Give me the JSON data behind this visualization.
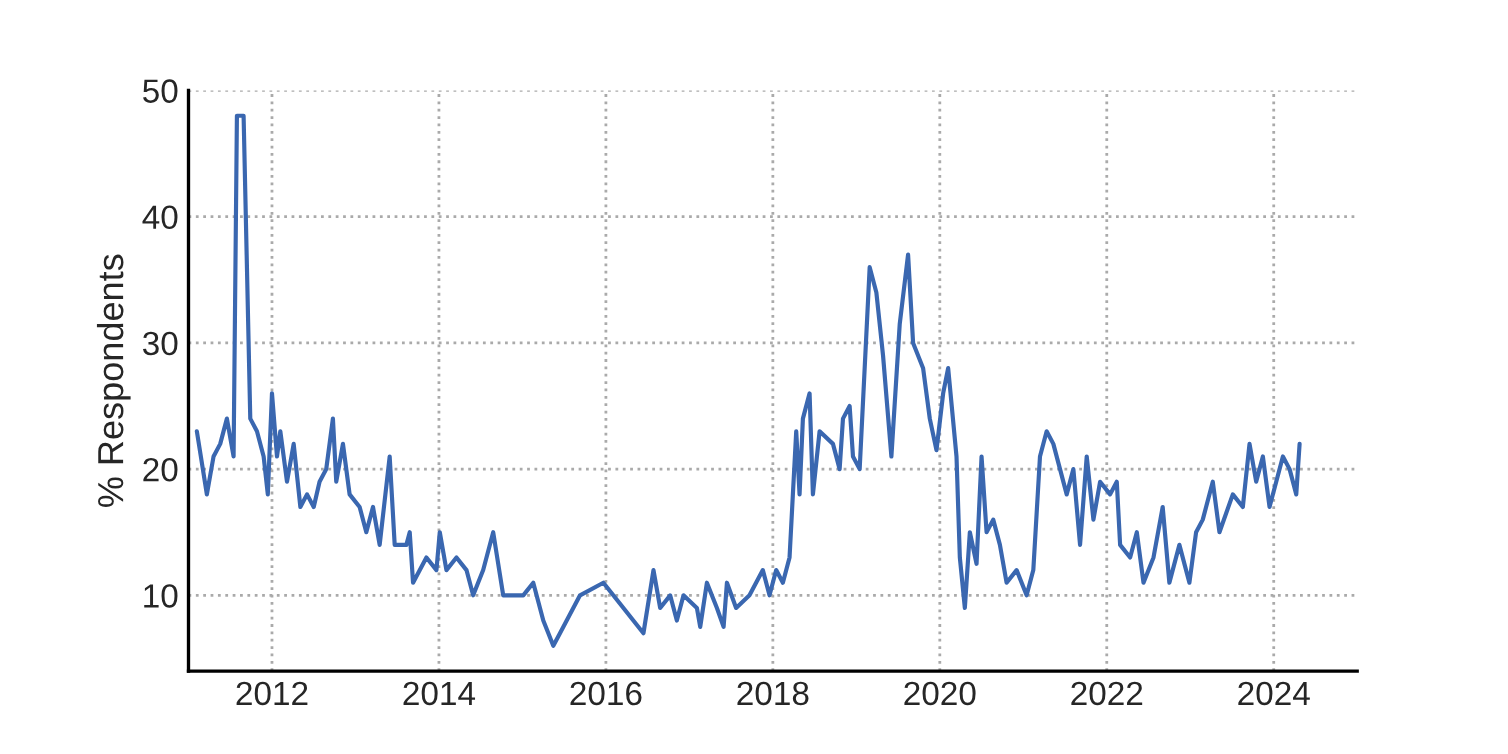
{
  "chart_data": {
    "type": "line",
    "ylabel": "% Respondents",
    "xlim": [
      2011,
      2025
    ],
    "ylim": [
      4,
      50
    ],
    "xticks": [
      2012,
      2014,
      2016,
      2018,
      2020,
      2022,
      2024
    ],
    "yticks": [
      10,
      20,
      30,
      40,
      50
    ],
    "grid": true,
    "line_style": "solid",
    "marker": "none",
    "series": [
      {
        "color": "#3a67b0",
        "x": [
          2011.1,
          2011.22,
          2011.3,
          2011.38,
          2011.46,
          2011.54,
          2011.58,
          2011.66,
          2011.74,
          2011.82,
          2011.9,
          2011.95,
          2012.0,
          2012.06,
          2012.1,
          2012.18,
          2012.26,
          2012.34,
          2012.42,
          2012.5,
          2012.57,
          2012.65,
          2012.73,
          2012.77,
          2012.85,
          2012.93,
          2013.05,
          2013.13,
          2013.21,
          2013.29,
          2013.41,
          2013.47,
          2013.61,
          2013.65,
          2013.69,
          2013.85,
          2013.97,
          2014.01,
          2014.09,
          2014.21,
          2014.33,
          2014.41,
          2014.53,
          2014.65,
          2014.77,
          2015.01,
          2015.13,
          2015.25,
          2015.37,
          2015.45,
          2015.69,
          2015.97,
          2016.45,
          2016.57,
          2016.65,
          2016.77,
          2016.85,
          2016.93,
          2017.09,
          2017.13,
          2017.21,
          2017.33,
          2017.41,
          2017.45,
          2017.56,
          2017.72,
          2017.88,
          2017.96,
          2018.04,
          2018.12,
          2018.2,
          2018.28,
          2018.32,
          2018.36,
          2018.44,
          2018.48,
          2018.56,
          2018.72,
          2018.8,
          2018.84,
          2018.92,
          2018.96,
          2019.04,
          2019.16,
          2019.24,
          2019.32,
          2019.42,
          2019.52,
          2019.62,
          2019.68,
          2019.8,
          2019.88,
          2019.96,
          2020.04,
          2020.1,
          2020.2,
          2020.24,
          2020.3,
          2020.36,
          2020.44,
          2020.5,
          2020.56,
          2020.64,
          2020.72,
          2020.8,
          2020.92,
          2021.04,
          2021.12,
          2021.2,
          2021.28,
          2021.36,
          2021.44,
          2021.52,
          2021.6,
          2021.68,
          2021.76,
          2021.84,
          2021.92,
          2022.04,
          2022.12,
          2022.16,
          2022.28,
          2022.36,
          2022.44,
          2022.56,
          2022.67,
          2022.75,
          2022.87,
          2022.99,
          2023.07,
          2023.15,
          2023.27,
          2023.35,
          2023.51,
          2023.63,
          2023.71,
          2023.79,
          2023.87,
          2023.95,
          2024.03,
          2024.11,
          2024.19,
          2024.27,
          2024.31
        ],
        "values": [
          23,
          18,
          21,
          22,
          24,
          21,
          48,
          48,
          24,
          23,
          21,
          18,
          26,
          21,
          23,
          19,
          22,
          17,
          18,
          17,
          19,
          20,
          24,
          19,
          22,
          18,
          17,
          15,
          17,
          14,
          21,
          14,
          14,
          15,
          11,
          13,
          12,
          15,
          12,
          13,
          12,
          10,
          12,
          15,
          10,
          10,
          11,
          8,
          6,
          7,
          10,
          11,
          7,
          12,
          9,
          10,
          8,
          10,
          9,
          7.5,
          11,
          9,
          7.5,
          11,
          9,
          10,
          12,
          10,
          12,
          11,
          13,
          23,
          18,
          24,
          26,
          18,
          23,
          22,
          20,
          24,
          25,
          21,
          20,
          36,
          34,
          29,
          21,
          31.5,
          37,
          30,
          28,
          24,
          21.5,
          26,
          28,
          21,
          13,
          9,
          15,
          12.5,
          21,
          15,
          16,
          14,
          11,
          12,
          10,
          12,
          21,
          23,
          22,
          20,
          18,
          20,
          14,
          21,
          16,
          19,
          18,
          19,
          14,
          13,
          15,
          11,
          13,
          17,
          11,
          14,
          11,
          15,
          16,
          19,
          15,
          18,
          17,
          22,
          19,
          21,
          17,
          19,
          21,
          20,
          18,
          22
        ]
      }
    ]
  }
}
